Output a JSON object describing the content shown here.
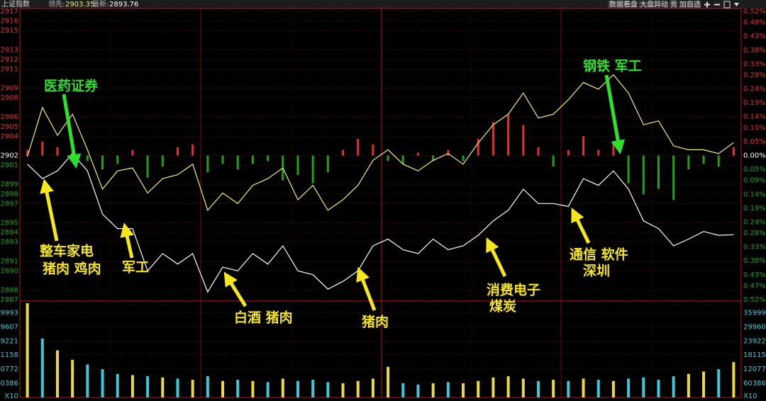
{
  "chart_data": {
    "type": "line",
    "title": "上证指数",
    "categories": [
      null,
      null,
      null,
      null,
      null,
      null,
      null,
      null,
      null,
      null,
      null,
      null,
      null,
      null,
      null,
      null,
      null,
      null,
      null,
      null,
      null,
      null,
      null,
      null,
      null,
      null,
      null,
      null,
      null,
      null,
      null,
      null,
      null,
      null,
      null,
      null,
      null,
      null,
      null,
      null,
      null,
      null,
      null,
      null,
      null,
      null,
      null,
      null
    ],
    "series": [
      {
        "name": "领先:",
        "color": "#f2f27a",
        "values": [
          2901.9,
          2907.0,
          2904.1,
          2906.3,
          2902.6,
          2898.5,
          2900.4,
          2900.7,
          2898.1,
          2899.6,
          2900.0,
          2901.1,
          2896.3,
          2898.1,
          2897.0,
          2898.9,
          2899.6,
          2900.7,
          2897.4,
          2898.9,
          2896.3,
          2897.4,
          2898.9,
          2901.5,
          2902.6,
          2901.1,
          2900.4,
          2901.5,
          2902.2,
          2901.1,
          2903.3,
          2905.2,
          2906.3,
          2908.5,
          2905.9,
          2906.3,
          2907.8,
          2909.6,
          2908.9,
          2910.4,
          2908.5,
          2905.2,
          2905.6,
          2903.0,
          2902.6,
          2902.6,
          2902.2,
          2903.35
        ]
      },
      {
        "name": "最新:",
        "color": "#ffffff",
        "values": [
          2901.1,
          2899.6,
          2900.4,
          2902.2,
          2900.4,
          2895.9,
          2894.4,
          2894.4,
          2890.0,
          2891.8,
          2890.7,
          2891.8,
          2887.8,
          2890.4,
          2890.0,
          2891.8,
          2890.7,
          2892.6,
          2890.0,
          2889.6,
          2888.1,
          2888.9,
          2890.0,
          2892.6,
          2893.3,
          2892.2,
          2891.8,
          2893.3,
          2892.2,
          2892.6,
          2893.7,
          2895.2,
          2896.3,
          2898.5,
          2897.0,
          2897.0,
          2896.7,
          2899.6,
          2898.9,
          2900.4,
          2898.5,
          2895.2,
          2894.4,
          2892.6,
          2893.3,
          2894.1,
          2893.7,
          2893.76
        ]
      }
    ],
    "ylim": [
      2887,
      2917
    ],
    "yticks": [
      2887,
      2888,
      2890,
      2891,
      2893,
      2894,
      2895,
      2897,
      2898,
      2899,
      2901,
      2902,
      2904,
      2905,
      2906,
      2908,
      2909,
      2911,
      2912,
      2913,
      2915,
      2916,
      2917
    ],
    "y2lim": [
      -0.52,
      0.52
    ],
    "y2ticks": [
      {
        "value": -0.52,
        "label": "0.52%"
      },
      {
        "value": -0.47,
        "label": "0.47%"
      },
      {
        "value": -0.43,
        "label": "0.43%"
      },
      {
        "value": -0.38,
        "label": "0.38%"
      },
      {
        "value": -0.33,
        "label": "0.33%"
      },
      {
        "value": -0.28,
        "label": "0.28%"
      },
      {
        "value": -0.24,
        "label": "0.24%"
      },
      {
        "value": -0.19,
        "label": "0.19%"
      },
      {
        "value": -0.14,
        "label": "0.14%"
      },
      {
        "value": -0.09,
        "label": "0.09%"
      },
      {
        "value": -0.05,
        "label": "0.05%"
      },
      {
        "value": 0,
        "label": "0.00%"
      },
      {
        "value": 0.05,
        "label": "0.05%"
      },
      {
        "value": 0.1,
        "label": "0.10%"
      },
      {
        "value": 0.14,
        "label": "0.14%"
      },
      {
        "value": 0.19,
        "label": "0.19%"
      },
      {
        "value": 0.24,
        "label": "0.24%"
      },
      {
        "value": 0.29,
        "label": "0.29%"
      },
      {
        "value": 0.33,
        "label": "0.33%"
      },
      {
        "value": 0.38,
        "label": "0.38%"
      },
      {
        "value": 0.43,
        "label": "0.43%"
      },
      {
        "value": 0.48,
        "label": "0.48%"
      },
      {
        "value": 0.52,
        "label": "0.52%"
      }
    ],
    "breadth": {
      "axis": "y2",
      "up_color": "#e03030",
      "down_color": "#1fa01f",
      "values": [
        0.02,
        0.05,
        0.03,
        0.06,
        -0.02,
        -0.05,
        -0.03,
        0.02,
        -0.08,
        -0.04,
        0.03,
        0.04,
        -0.06,
        -0.03,
        -0.05,
        -0.03,
        -0.02,
        -0.09,
        -0.07,
        -0.1,
        -0.06,
        0.02,
        0.06,
        0.04,
        -0.02,
        -0.03,
        0.01,
        -0.02,
        0.02,
        -0.02,
        0.06,
        0.12,
        0.15,
        0.11,
        0.03,
        -0.04,
        0.02,
        0.07,
        0.02,
        0.05,
        -0.1,
        -0.14,
        -0.12,
        -0.16,
        -0.05,
        -0.03,
        -0.04,
        0.03
      ]
    },
    "volume": {
      "unit": "X10",
      "up_color": "#e8d84a",
      "down_color": "#3cc8d8",
      "ylim": [
        0,
        400000
      ],
      "yticks": [
        60386,
        120772,
        181158,
        239221,
        299607,
        359993
      ],
      "values": [
        400000,
        250000,
        200000,
        160000,
        140000,
        120000,
        100000,
        95000,
        90000,
        85000,
        80000,
        75000,
        90000,
        70000,
        75000,
        70000,
        65000,
        80000,
        70000,
        75000,
        65000,
        60000,
        70000,
        80000,
        130000,
        60000,
        55000,
        60000,
        65000,
        60000,
        70000,
        85000,
        90000,
        80000,
        70000,
        75000,
        70000,
        80000,
        75000,
        70000,
        80000,
        85000,
        75000,
        90000,
        100000,
        110000,
        120000,
        150000
      ]
    },
    "grid": true
  },
  "toolbar": [
    "数据看盘",
    "大盘异动",
    "亮",
    "加自选"
  ],
  "annotations": [
    "医药证券",
    "钢铁 军工",
    "整车家电",
    "猪肉 鸡肉",
    "军工",
    "白酒 猪肉",
    "猪肉",
    "消费电子",
    "煤炭",
    "通信 软件",
    "深圳"
  ]
}
